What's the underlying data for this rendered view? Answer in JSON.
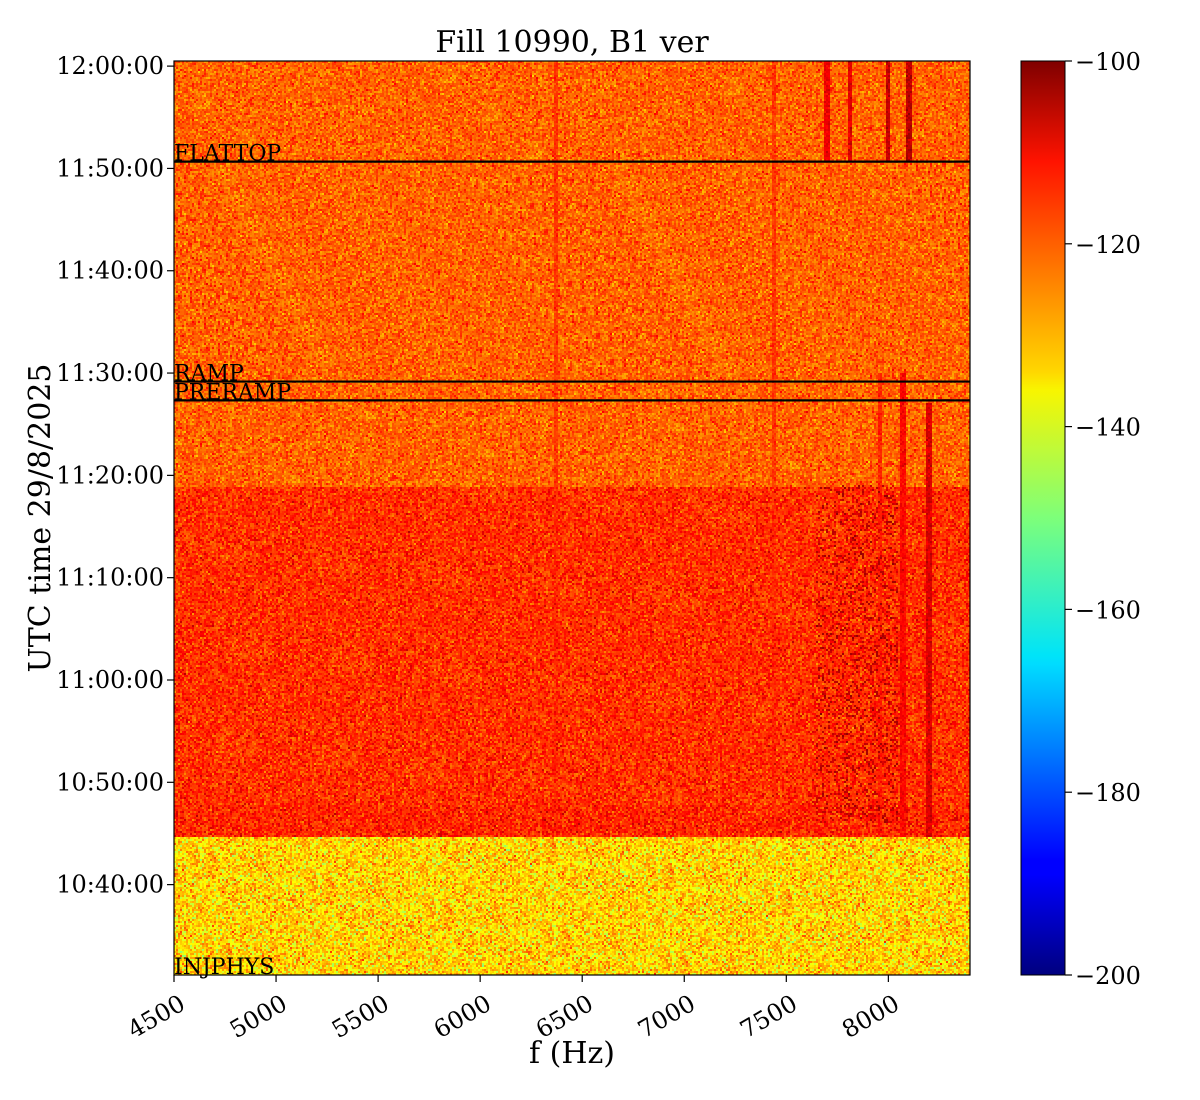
{
  "chart_data": {
    "type": "heatmap",
    "title": "Fill 10990, B1 ver",
    "xlabel": "f (Hz)",
    "ylabel": "UTC time 29/8/2025",
    "xlim": [
      4500,
      8400
    ],
    "ylim": [
      "10:31:10",
      "12:00:30"
    ],
    "x_ticks": [
      4500,
      5000,
      5500,
      6000,
      6500,
      7000,
      7500,
      8000
    ],
    "x_tick_labels": [
      "4500",
      "5000",
      "5500",
      "6000",
      "6500",
      "7000",
      "7500",
      "8000"
    ],
    "y_ticks": [
      "10:40:00",
      "10:50:00",
      "11:00:00",
      "11:10:00",
      "11:20:00",
      "11:30:00",
      "11:40:00",
      "11:50:00",
      "12:00:00"
    ],
    "y_tick_labels": [
      "10:40:00",
      "10:50:00",
      "11:00:00",
      "11:10:00",
      "11:20:00",
      "11:30:00",
      "11:40:00",
      "11:50:00",
      "12:00:00"
    ],
    "colorscale": "jet",
    "color_range": [
      -200,
      -100
    ],
    "colorbar_ticks": [
      -100,
      -120,
      -140,
      -160,
      -180,
      -200
    ],
    "colorbar_tick_labels": [
      "−100",
      "−120",
      "−140",
      "−160",
      "−180",
      "−200"
    ],
    "grid": false,
    "legend": "none",
    "regions": [
      {
        "from": "10:31:10",
        "to": "10:44:40",
        "mean": -133,
        "spread": 6
      },
      {
        "from": "10:44:40",
        "to": "10:47:50",
        "mean": -116,
        "spread": 4
      },
      {
        "from": "10:47:50",
        "to": "11:18:50",
        "mean": -117,
        "spread": 4
      },
      {
        "from": "11:18:50",
        "to": "12:00:30",
        "mean": -122,
        "spread": 4
      }
    ],
    "spectral_lines": [
      {
        "f": 6370,
        "from": "10:44:40",
        "to": "12:00:30",
        "level": -118
      },
      {
        "f": 7440,
        "from": "10:44:40",
        "to": "12:00:30",
        "level": -118
      },
      {
        "f": 7960,
        "from": "10:44:40",
        "to": "11:30:00",
        "level": -116
      },
      {
        "f": 8070,
        "from": "10:44:40",
        "to": "11:30:00",
        "level": -113
      },
      {
        "f": 8200,
        "from": "10:44:40",
        "to": "11:27:00",
        "level": -109
      },
      {
        "f": 7700,
        "from": "11:50:40",
        "to": "12:00:30",
        "level": -111
      },
      {
        "f": 7810,
        "from": "11:50:40",
        "to": "12:00:30",
        "level": -110
      },
      {
        "f": 8000,
        "from": "11:50:40",
        "to": "12:00:30",
        "level": -107
      },
      {
        "f": 8100,
        "from": "11:50:40",
        "to": "12:00:30",
        "level": -106
      }
    ],
    "hot_cluster": {
      "f_from": 7650,
      "f_to": 8050,
      "from": "10:46:00",
      "to": "11:19:00",
      "level": -106
    },
    "events": [
      {
        "label": "FLATTOP",
        "time": "11:50:40"
      },
      {
        "label": "RAMP",
        "time": "11:29:10"
      },
      {
        "label": "PRERAMP",
        "time": "11:27:20"
      },
      {
        "label": "INJPHYS",
        "time": "10:31:10"
      }
    ]
  }
}
